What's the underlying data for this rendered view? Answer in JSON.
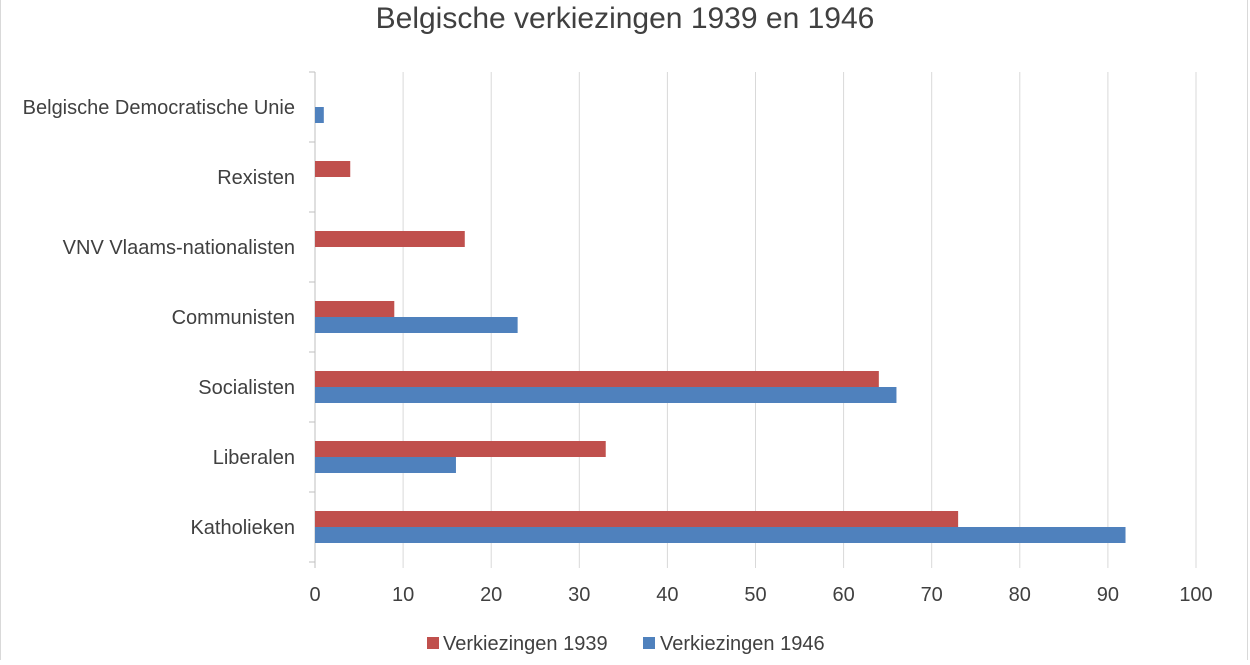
{
  "chart_data": {
    "type": "bar",
    "orientation": "horizontal",
    "title": "Belgische verkiezingen 1939 en 1946",
    "categories": [
      "Belgische Democratische Unie",
      "Rexisten",
      "VNV Vlaams-nationalisten",
      "Communisten",
      "Socialisten",
      "Liberalen",
      "Katholieken"
    ],
    "series": [
      {
        "name": "Verkiezingen 1939",
        "color": "#c0504d",
        "values": [
          null,
          4,
          17,
          9,
          64,
          33,
          73
        ]
      },
      {
        "name": "Verkiezingen 1946",
        "color": "#4f81bd",
        "values": [
          1,
          null,
          null,
          23,
          66,
          16,
          92
        ]
      }
    ],
    "xlim": [
      0,
      100
    ],
    "xticks": [
      0,
      10,
      20,
      30,
      40,
      50,
      60,
      70,
      80,
      90,
      100
    ],
    "grid": true,
    "legend": "bottom"
  }
}
